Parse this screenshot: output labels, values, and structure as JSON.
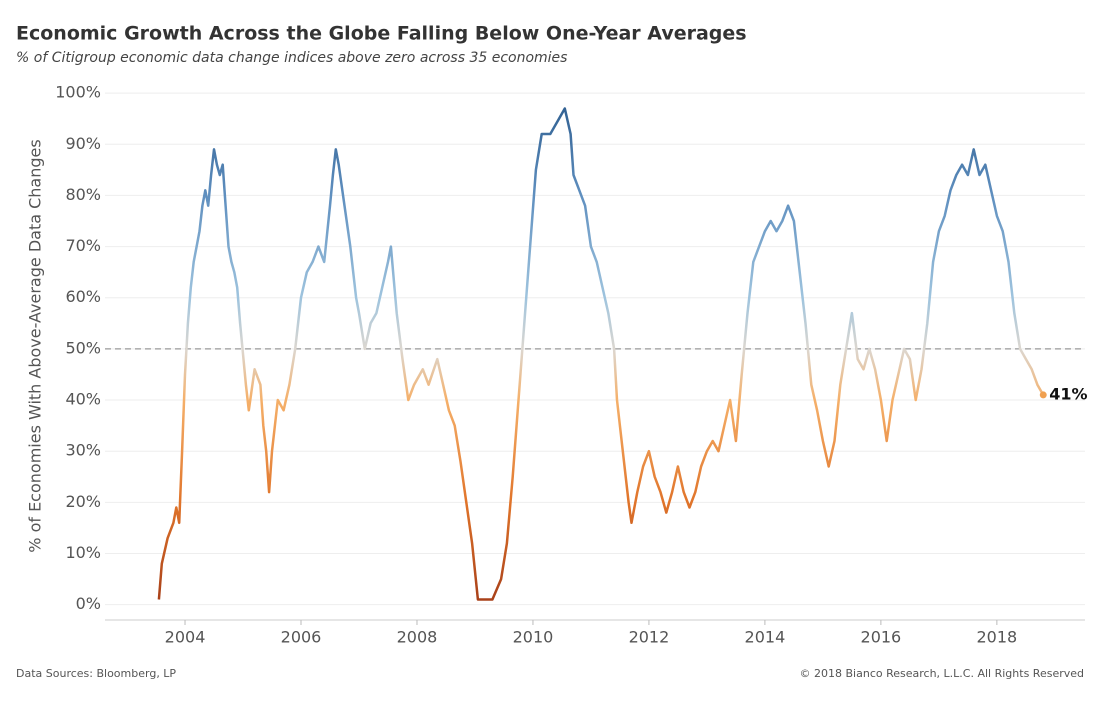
{
  "chart_data": {
    "type": "line",
    "title": "Economic Growth Across the Globe Falling Below One-Year Averages",
    "subtitle": "% of Citigroup economic data change indices above zero across 35 economies",
    "ylabel": "% of Economies With Above-Average Data Changes",
    "source": "Data Sources: Bloomberg, LP",
    "copyright": "© 2018 Bianco Research, L.L.C. All Rights Reserved",
    "end_label": "41%",
    "reference_line": 50,
    "grid": true,
    "color_scale": [
      {
        "value": 0,
        "color": "#a63e18"
      },
      {
        "value": 20,
        "color": "#e0742a"
      },
      {
        "value": 40,
        "color": "#f5b06a"
      },
      {
        "value": 50,
        "color": "#dcd7d0"
      },
      {
        "value": 60,
        "color": "#9fc4de"
      },
      {
        "value": 80,
        "color": "#5f8fbf"
      },
      {
        "value": 100,
        "color": "#2a5a8c"
      }
    ],
    "xlim": [
      2002.62,
      2019.52
    ],
    "xticks": [
      2004,
      2006,
      2008,
      2010,
      2012,
      2014,
      2016,
      2018
    ],
    "ylim": [
      -3,
      101
    ],
    "yticks": [
      {
        "value": 0,
        "label": "0%"
      },
      {
        "value": 10,
        "label": "10%"
      },
      {
        "value": 20,
        "label": "20%"
      },
      {
        "value": 30,
        "label": "30%"
      },
      {
        "value": 40,
        "label": "40%"
      },
      {
        "value": 50,
        "label": "50%"
      },
      {
        "value": 60,
        "label": "60%"
      },
      {
        "value": 70,
        "label": "70%"
      },
      {
        "value": 80,
        "label": "80%"
      },
      {
        "value": 90,
        "label": "90%"
      },
      {
        "value": 100,
        "label": "100%"
      }
    ],
    "x": [
      2003.55,
      2003.6,
      2003.7,
      2003.8,
      2003.85,
      2003.9,
      2003.95,
      2004.0,
      2004.05,
      2004.1,
      2004.15,
      2004.2,
      2004.25,
      2004.3,
      2004.35,
      2004.4,
      2004.45,
      2004.5,
      2004.55,
      2004.6,
      2004.65,
      2004.7,
      2004.75,
      2004.8,
      2004.85,
      2004.9,
      2004.95,
      2005.0,
      2005.05,
      2005.1,
      2005.2,
      2005.3,
      2005.35,
      2005.4,
      2005.45,
      2005.5,
      2005.55,
      2005.6,
      2005.7,
      2005.8,
      2005.9,
      2006.0,
      2006.1,
      2006.2,
      2006.3,
      2006.4,
      2006.5,
      2006.55,
      2006.6,
      2006.65,
      2006.75,
      2006.85,
      2006.95,
      2007.0,
      2007.1,
      2007.2,
      2007.3,
      2007.4,
      2007.5,
      2007.55,
      2007.65,
      2007.75,
      2007.85,
      2007.95,
      2008.1,
      2008.2,
      2008.35,
      2008.45,
      2008.55,
      2008.65,
      2008.75,
      2008.85,
      2008.95,
      2009.05,
      2009.15,
      2009.3,
      2009.45,
      2009.55,
      2009.65,
      2009.75,
      2009.85,
      2009.95,
      2010.05,
      2010.15,
      2010.3,
      2010.45,
      2010.55,
      2010.65,
      2010.7,
      2010.8,
      2010.9,
      2011.0,
      2011.1,
      2011.2,
      2011.3,
      2011.4,
      2011.45,
      2011.55,
      2011.65,
      2011.7,
      2011.8,
      2011.9,
      2012.0,
      2012.1,
      2012.2,
      2012.3,
      2012.4,
      2012.5,
      2012.6,
      2012.7,
      2012.8,
      2012.9,
      2013.0,
      2013.1,
      2013.2,
      2013.3,
      2013.4,
      2013.5,
      2013.6,
      2013.7,
      2013.8,
      2013.9,
      2014.0,
      2014.1,
      2014.2,
      2014.3,
      2014.4,
      2014.5,
      2014.6,
      2014.7,
      2014.8,
      2014.9,
      2015.0,
      2015.1,
      2015.2,
      2015.3,
      2015.4,
      2015.5,
      2015.6,
      2015.7,
      2015.8,
      2015.9,
      2016.0,
      2016.1,
      2016.2,
      2016.3,
      2016.4,
      2016.5,
      2016.6,
      2016.7,
      2016.8,
      2016.9,
      2017.0,
      2017.1,
      2017.2,
      2017.3,
      2017.4,
      2017.5,
      2017.6,
      2017.7,
      2017.8,
      2017.9,
      2018.0,
      2018.1,
      2018.2,
      2018.3,
      2018.4,
      2018.5,
      2018.6,
      2018.7,
      2018.8
    ],
    "values": [
      1,
      8,
      13,
      16,
      19,
      16,
      30,
      45,
      55,
      62,
      67,
      70,
      73,
      78,
      81,
      78,
      84,
      89,
      86,
      84,
      86,
      78,
      70,
      67,
      65,
      62,
      55,
      49,
      43,
      38,
      46,
      43,
      35,
      30,
      22,
      30,
      35,
      40,
      38,
      43,
      50,
      60,
      65,
      67,
      70,
      67,
      78,
      84,
      89,
      86,
      78,
      70,
      60,
      57,
      50,
      55,
      57,
      62,
      67,
      70,
      57,
      48,
      40,
      43,
      46,
      43,
      48,
      43,
      38,
      35,
      28,
      20,
      12,
      1,
      1,
      1,
      5,
      12,
      25,
      40,
      55,
      70,
      85,
      92,
      92,
      95,
      97,
      92,
      84,
      81,
      78,
      70,
      67,
      62,
      57,
      50,
      40,
      30,
      20,
      16,
      22,
      27,
      30,
      25,
      22,
      18,
      22,
      27,
      22,
      19,
      22,
      27,
      30,
      32,
      30,
      35,
      40,
      32,
      45,
      57,
      67,
      70,
      73,
      75,
      73,
      75,
      78,
      75,
      65,
      55,
      43,
      38,
      32,
      27,
      32,
      43,
      50,
      57,
      48,
      46,
      50,
      46,
      40,
      32,
      40,
      45,
      50,
      48,
      40,
      46,
      55,
      67,
      73,
      76,
      81,
      84,
      86,
      84,
      89,
      84,
      86,
      81,
      76,
      73,
      67,
      57,
      50,
      48,
      46,
      43,
      41
    ]
  }
}
